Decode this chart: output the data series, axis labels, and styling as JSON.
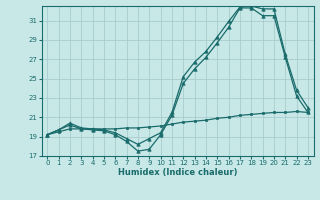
{
  "title": "",
  "xlabel": "Humidex (Indice chaleur)",
  "bg_color": "#c8e8e8",
  "grid_color": "#a8cccc",
  "line_color": "#1a6b6b",
  "xlim": [
    -0.5,
    23.5
  ],
  "ylim": [
    17,
    32.5
  ],
  "yticks": [
    17,
    19,
    21,
    23,
    25,
    27,
    29,
    31
  ],
  "xticks": [
    0,
    1,
    2,
    3,
    4,
    5,
    6,
    7,
    8,
    9,
    10,
    11,
    12,
    13,
    14,
    15,
    16,
    17,
    18,
    19,
    20,
    21,
    22,
    23
  ],
  "series1_x": [
    0,
    1,
    2,
    3,
    4,
    5,
    6,
    7,
    8,
    9,
    10,
    11,
    12,
    13,
    14,
    15,
    16,
    17,
    18,
    19,
    20,
    21,
    22,
    23
  ],
  "series1_y": [
    19.2,
    19.7,
    20.2,
    19.8,
    19.7,
    19.6,
    19.2,
    18.5,
    17.5,
    17.7,
    19.2,
    21.2,
    24.5,
    26.0,
    27.2,
    28.7,
    30.3,
    32.3,
    32.3,
    31.5,
    31.5,
    27.2,
    23.2,
    21.5
  ],
  "series2_x": [
    0,
    1,
    2,
    3,
    4,
    5,
    6,
    7,
    8,
    9,
    10,
    11,
    12,
    13,
    14,
    15,
    16,
    17,
    18,
    19,
    20,
    21,
    22,
    23
  ],
  "series2_y": [
    19.2,
    19.7,
    20.4,
    19.9,
    19.8,
    19.7,
    19.4,
    18.8,
    18.2,
    18.8,
    19.4,
    21.5,
    25.2,
    26.7,
    27.8,
    29.3,
    30.9,
    32.4,
    32.5,
    32.2,
    32.2,
    27.5,
    23.8,
    22.0
  ],
  "series3_x": [
    0,
    1,
    2,
    3,
    4,
    5,
    6,
    7,
    8,
    9,
    10,
    11,
    12,
    13,
    14,
    15,
    16,
    17,
    18,
    19,
    20,
    21,
    22,
    23
  ],
  "series3_y": [
    19.2,
    19.5,
    19.8,
    19.8,
    19.8,
    19.8,
    19.8,
    19.9,
    19.9,
    20.0,
    20.1,
    20.3,
    20.5,
    20.6,
    20.7,
    20.9,
    21.0,
    21.2,
    21.3,
    21.4,
    21.5,
    21.5,
    21.6,
    21.5
  ]
}
